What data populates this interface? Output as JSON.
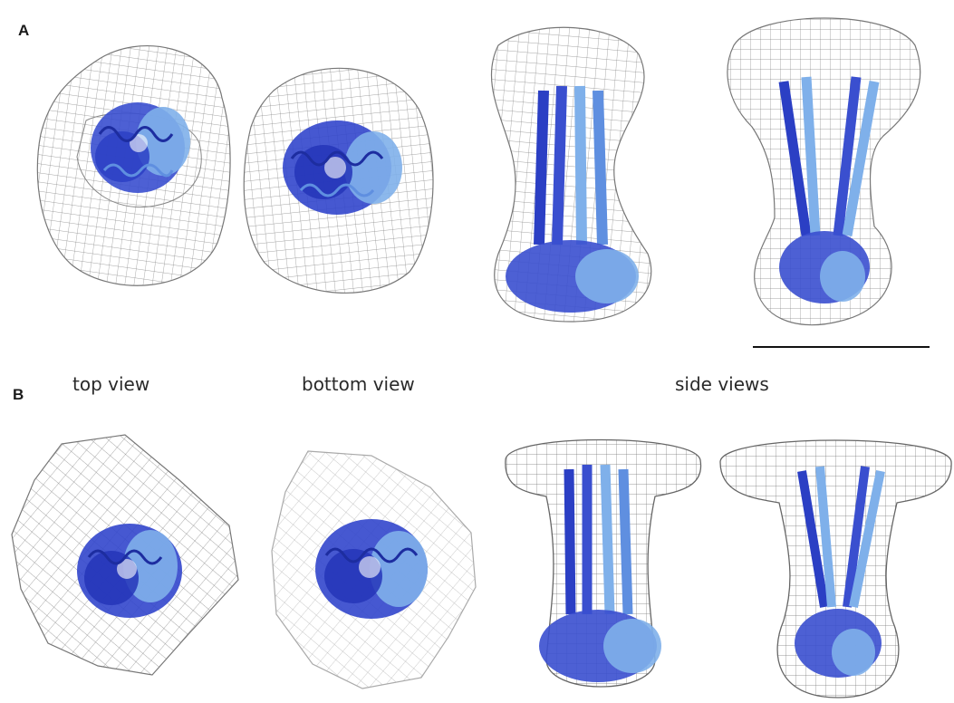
{
  "panels": {
    "a_label": "A",
    "b_label": "B"
  },
  "view_labels": {
    "top": "top view",
    "bottom": "bottom view",
    "side": "side views"
  },
  "colors": {
    "mesh": "#8c8c8c",
    "mesh_light": "#c4c4c4",
    "protein_dark": "#2b3fc4",
    "protein_mid": "#4a63d8",
    "protein_light": "#7fb0ea",
    "scalebar": "#111111"
  },
  "icons": [
    "em-density-mesh",
    "protein-ribbon-model",
    "scale-bar"
  ]
}
